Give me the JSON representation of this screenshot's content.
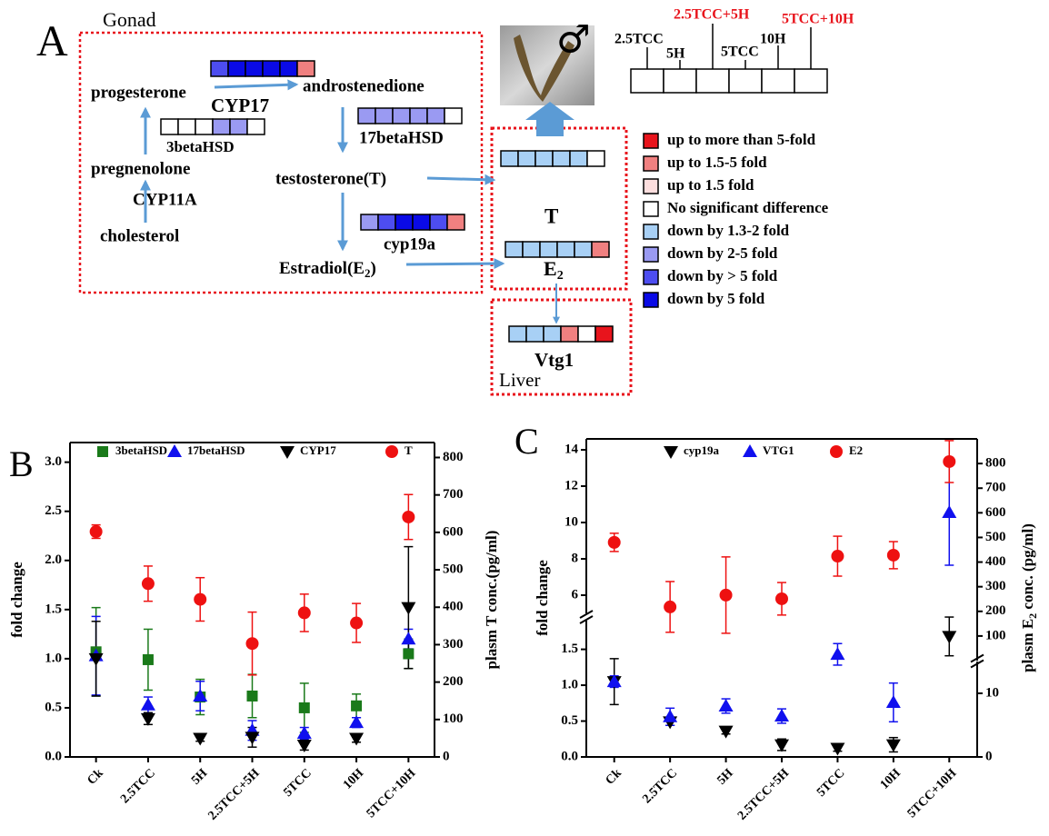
{
  "diagram": {
    "panel": "A",
    "gonad": "Gonad",
    "progesterone": "progesterone",
    "cyp17": "CYP17",
    "androstenedione": "androstenedione",
    "hsd3b": "3betaHSD",
    "hsd17b": "17betaHSD",
    "pregnenolone": "pregnenolone",
    "testosterone": "testosterone(T)",
    "cyp11a": "CYP11A",
    "cholesterol": "cholesterol",
    "cyp19a": "cyp19a",
    "estradiol": [
      "Estradiol(E",
      "2",
      ")"
    ],
    "t": "T",
    "e2": [
      "E",
      "2"
    ],
    "vtg1": "Vtg1",
    "liver": "Liver",
    "male": "♂",
    "scale": [
      "2.5TCC",
      "5H",
      "2.5TCC+5H",
      "5TCC",
      "10H",
      "5TCC+10H"
    ],
    "scale_colors": [
      "#000000",
      "#000000",
      "#e8141c",
      "#000000",
      "#000000",
      "#e8141c"
    ],
    "strips": {
      "cyp17": [
        "#4d4df0",
        "#0a0ae6",
        "#0a0ae6",
        "#0a0ae6",
        "#0a0ae6",
        "#f08080"
      ],
      "hsd3b": [
        "#ffffff",
        "#ffffff",
        "#ffffff",
        "#9a9af2",
        "#9a9af2",
        "#ffffff"
      ],
      "hsd17b": [
        "#9a9af2",
        "#9a9af2",
        "#9a9af2",
        "#9a9af2",
        "#9a9af2",
        "#ffffff"
      ],
      "t": [
        "#a8d0f5",
        "#a8d0f5",
        "#a8d0f5",
        "#a8d0f5",
        "#a8d0f5",
        "#ffffff"
      ],
      "cyp19a": [
        "#9a9af2",
        "#4d4df0",
        "#0a0ae6",
        "#0a0ae6",
        "#4d4df0",
        "#f08080"
      ],
      "e2": [
        "#a8d0f5",
        "#a8d0f5",
        "#a8d0f5",
        "#a8d0f5",
        "#a8d0f5",
        "#f08080"
      ],
      "vtg1": [
        "#a8d0f5",
        "#a8d0f5",
        "#a8d0f5",
        "#f08080",
        "#ffffff",
        "#e8141c"
      ]
    },
    "legend": [
      {
        "label": "up to more than 5-fold",
        "color": "#e8141c"
      },
      {
        "label": "up to 1.5-5 fold",
        "color": "#f08080"
      },
      {
        "label": "up to 1.5 fold",
        "color": "#fddede"
      },
      {
        "label": "No significant difference",
        "color": "#ffffff"
      },
      {
        "label": "down by 1.3-2 fold",
        "color": "#a8d0f5"
      },
      {
        "label": "down by  2-5 fold",
        "color": "#9a9af2"
      },
      {
        "label": "down by > 5 fold",
        "color": "#4d4df0"
      },
      {
        "label": "down by 5 fold",
        "color": "#0a0ae6"
      }
    ]
  },
  "chart_data": [
    {
      "type": "scatter",
      "panel": "B",
      "categories": [
        "Ck",
        "2.5TCC",
        "5H",
        "2.5TCC+5H",
        "5TCC",
        "10H",
        "5TCC+10H"
      ],
      "ylabel": "fold change",
      "y2label": [
        "plasm T conc.(pg/ml)"
      ],
      "ylim": [
        0,
        3.2
      ],
      "yticks": [
        {
          "value": 0,
          "label": "0.0"
        },
        {
          "value": 0.5,
          "label": "0.5"
        },
        {
          "value": 1,
          "label": "1.0"
        },
        {
          "value": 1.5,
          "label": "1.5"
        },
        {
          "value": 2,
          "label": "2.0"
        },
        {
          "value": 2.5,
          "label": "2.5"
        },
        {
          "value": 3,
          "label": "3.0"
        }
      ],
      "y2lim": [
        0,
        840
      ],
      "y2ticks": [
        0,
        100,
        200,
        300,
        400,
        500,
        600,
        700,
        800
      ],
      "series": [
        {
          "name": "3betaHSD",
          "color": "#1a7a1a",
          "marker": "square",
          "values": [
            1.07,
            0.99,
            0.61,
            0.62,
            0.5,
            0.52,
            1.05
          ],
          "errors": [
            0.45,
            0.31,
            0.18,
            0.22,
            0.25,
            0.12,
            0.15
          ]
        },
        {
          "name": "17betaHSD",
          "color": "#1010ee",
          "marker": "triangle",
          "values": [
            1.03,
            0.53,
            0.62,
            0.27,
            0.24,
            0.35,
            1.2
          ],
          "errors": [
            0.4,
            0.08,
            0.15,
            0.1,
            0.06,
            0.05,
            0.1
          ]
        },
        {
          "name": "CYP17",
          "color": "#000000",
          "marker": "triangle-down",
          "values": [
            1.0,
            0.39,
            0.19,
            0.2,
            0.12,
            0.19,
            1.52
          ],
          "errors": [
            0.38,
            0.06,
            0.03,
            0.1,
            0.05,
            0.04,
            0.62
          ]
        },
        {
          "name": "T",
          "color": "#ee1111",
          "marker": "circle",
          "axis": "y2",
          "values": [
            602,
            463,
            421,
            303,
            385,
            358,
            641
          ],
          "errors": [
            18,
            47,
            58,
            84,
            50,
            52,
            60
          ]
        }
      ]
    },
    {
      "type": "scatter",
      "panel": "C",
      "categories": [
        "Ck",
        "2.5TCC",
        "5H",
        "2.5TCC+5H",
        "5TCC",
        "10H",
        "5TCC+10H"
      ],
      "ylabel": "fold change",
      "y2label": [
        "plasm E",
        "2",
        " conc. (pg/ml)"
      ],
      "ysegments": [
        {
          "ylim": [
            0,
            1.9
          ],
          "yticks": [
            {
              "value": 0,
              "label": "0.0"
            },
            {
              "value": 0.5,
              "label": "0.5"
            },
            {
              "value": 1,
              "label": "1.0"
            },
            {
              "value": 1.5,
              "label": "1.5"
            }
          ]
        },
        {
          "ylim": [
            5,
            14.6
          ],
          "yticks": [
            6,
            8,
            10,
            12,
            14
          ]
        }
      ],
      "y2segments": [
        {
          "y2lim": [
            0,
            15
          ],
          "y2ticks": [
            0,
            10
          ]
        },
        {
          "y2lim": [
            0,
            900
          ],
          "y2ticks": [
            100,
            200,
            300,
            400,
            500,
            600,
            700,
            800
          ]
        }
      ],
      "series": [
        {
          "name": "cyp19a",
          "color": "#000000",
          "marker": "triangle-down",
          "values": [
            1.05,
            0.49,
            0.36,
            0.17,
            0.12,
            0.17,
            1.68
          ],
          "errors": [
            0.32,
            0.05,
            0.04,
            0.08,
            0.04,
            0.1,
            0.27
          ]
        },
        {
          "name": "VTG1",
          "color": "#1010ee",
          "marker": "triangle",
          "values": [
            1.05,
            0.56,
            0.71,
            0.57,
            1.43,
            0.76,
            10.55
          ],
          "errors": [
            0.08,
            0.12,
            0.1,
            0.1,
            0.15,
            0.27,
            2.9
          ]
        },
        {
          "name": "E2",
          "color": "#ee1111",
          "marker": "circle",
          "axis": "y2",
          "values": [
            480,
            218,
            266,
            251,
            424,
            428,
            808
          ],
          "errors": [
            37,
            103,
            155,
            66,
            81,
            55,
            85
          ]
        }
      ]
    }
  ]
}
